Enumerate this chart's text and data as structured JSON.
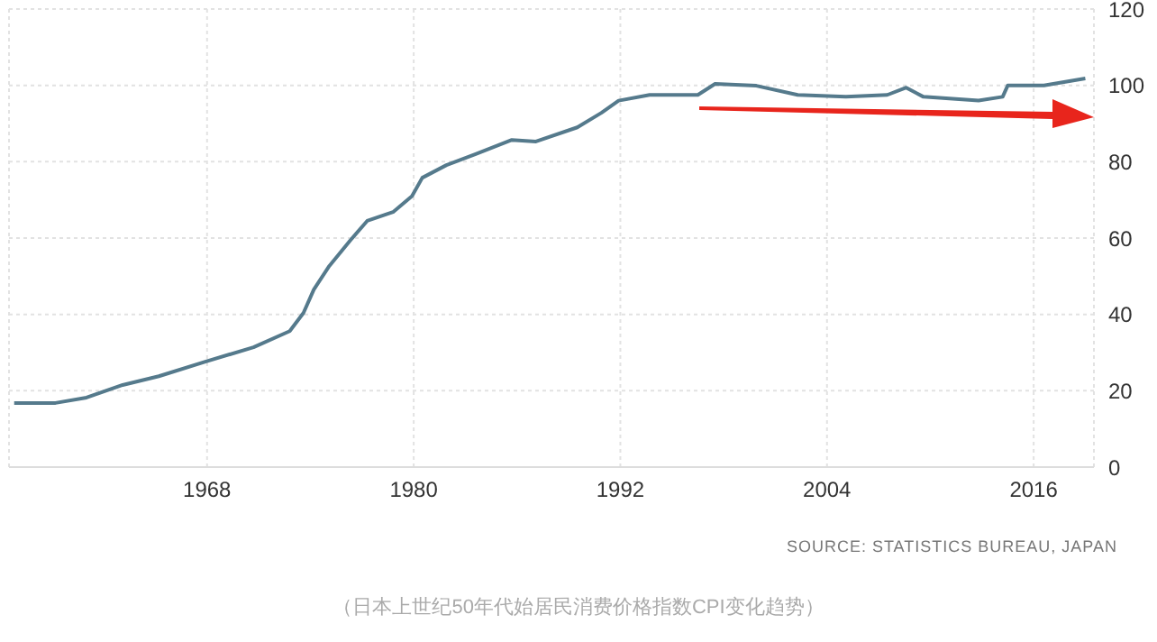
{
  "chart_data": {
    "type": "line",
    "x": [
      1956.8,
      1959.2,
      1961,
      1963.1,
      1965.2,
      1967.9,
      1970.7,
      1972.8,
      1973.6,
      1974.2,
      1975.1,
      1976.3,
      1977.3,
      1978.8,
      1979.9,
      1980.5,
      1981.9,
      1983.6,
      1985.7,
      1987.1,
      1989.5,
      1990.9,
      1991.9,
      1993.7,
      1996.5,
      1997.5,
      1999.9,
      2002.3,
      2005.1,
      2007.5,
      2008.6,
      2009.6,
      2012.8,
      2014.2,
      2014.5,
      2016.6,
      2019
    ],
    "series": [
      {
        "color": "#557a8c",
        "values": [
          16.8,
          16.8,
          18.2,
          21.5,
          23.8,
          27.6,
          31.4,
          35.6,
          40.4,
          46.5,
          52.7,
          59.3,
          64.5,
          66.8,
          71,
          75.8,
          79.1,
          82,
          85.7,
          85.3,
          89,
          92.8,
          96,
          97.5,
          97.5,
          100.4,
          99.9,
          97.5,
          97,
          97.5,
          99.4,
          97,
          96,
          97,
          100,
          100,
          101.8
        ]
      }
    ],
    "xlim": [
      1956.5,
      2019.5
    ],
    "xticks": [
      1968,
      1980,
      1992,
      2004,
      2016
    ],
    "ylim": [
      0,
      120
    ],
    "yticks": [
      0,
      20,
      40,
      60,
      80,
      100,
      120
    ],
    "grid": true,
    "marker": "none",
    "line_style": "solid",
    "annotations": [
      "SOURCE: STATISTICS BUREAU, JAPAN",
      "（日本上世纪50年代始居民消费价格指数CPI变化趋势）"
    ]
  }
}
